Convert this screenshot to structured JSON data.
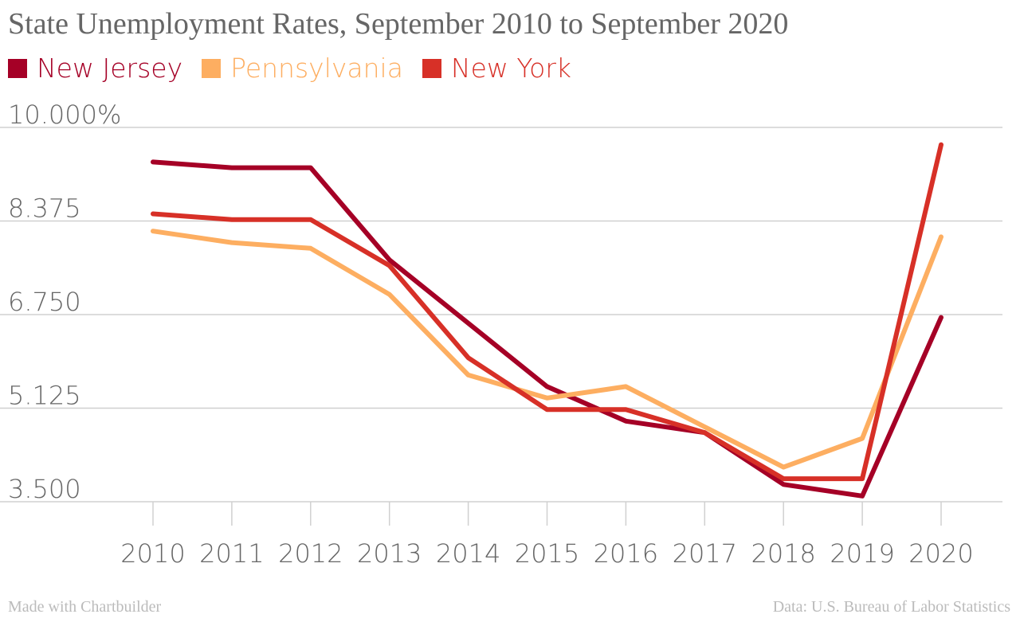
{
  "chart_data": {
    "type": "line",
    "title": "State Unemployment Rates, September 2010 to September 2020",
    "x": [
      "2010",
      "2011",
      "2012",
      "2013",
      "2014",
      "2015",
      "2016",
      "2017",
      "2018",
      "2019",
      "2020"
    ],
    "y_ticks": [
      "10.000%",
      "8.375",
      "6.750",
      "5.125",
      "3.500"
    ],
    "y_tick_values": [
      10.0,
      8.375,
      6.75,
      5.125,
      3.5
    ],
    "ylim": [
      3.5,
      10.0
    ],
    "grid": true,
    "legend_position": "top-left",
    "series": [
      {
        "name": "New Jersey",
        "color": "#a50026",
        "values": [
          9.4,
          9.3,
          9.3,
          7.7,
          6.6,
          5.5,
          4.9,
          4.7,
          3.8,
          3.6,
          6.7
        ]
      },
      {
        "name": "Pennsylvania",
        "color": "#fdae61",
        "values": [
          8.2,
          8.0,
          7.9,
          7.1,
          5.7,
          5.3,
          5.5,
          4.8,
          4.1,
          4.6,
          8.1
        ]
      },
      {
        "name": "New York",
        "color": "#d73027",
        "values": [
          8.5,
          8.4,
          8.4,
          7.6,
          6.0,
          5.1,
          5.1,
          4.7,
          3.9,
          3.9,
          9.7
        ]
      }
    ]
  },
  "footer": {
    "credit": "Made with Chartbuilder",
    "source": "Data: U.S. Bureau of Labor Statistics"
  }
}
